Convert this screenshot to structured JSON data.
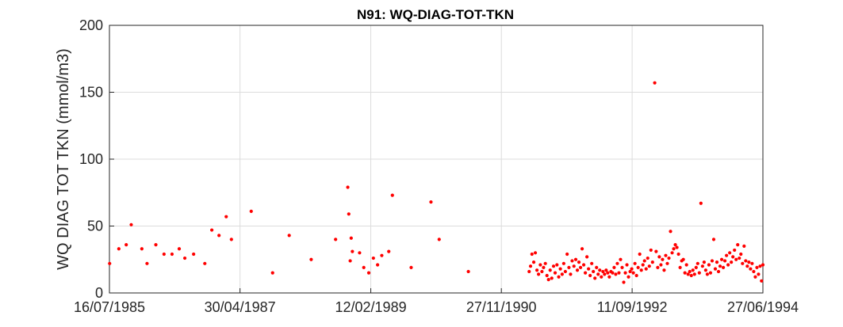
{
  "chart_data": {
    "type": "scatter",
    "title": "N91: WQ-DIAG-TOT-TKN",
    "xlabel": "",
    "ylabel": "WQ DIAG TOT TKN (mmol/m3)",
    "ylim": [
      0,
      200
    ],
    "yticks": [
      0,
      50,
      100,
      150,
      200
    ],
    "xlim": [
      "1985-07-16",
      "1994-06-27"
    ],
    "xticks": [
      "16/07/1985",
      "30/04/1987",
      "12/02/1989",
      "27/11/1990",
      "11/09/1992",
      "27/06/1994"
    ],
    "grid": true,
    "marker_color": "#ff0000",
    "series": [
      {
        "points": [
          [
            "1985-07-17",
            22
          ],
          [
            "1985-09-01",
            33
          ],
          [
            "1985-10-08",
            36
          ],
          [
            "1985-11-02",
            51
          ],
          [
            "1985-12-25",
            33
          ],
          [
            "1986-01-20",
            22
          ],
          [
            "1986-03-05",
            36
          ],
          [
            "1986-04-15",
            29
          ],
          [
            "1986-05-25",
            29
          ],
          [
            "1986-06-30",
            33
          ],
          [
            "1986-07-28",
            26
          ],
          [
            "1986-09-10",
            29
          ],
          [
            "1986-11-05",
            22
          ],
          [
            "1986-12-10",
            47
          ],
          [
            "1987-01-15",
            43
          ],
          [
            "1987-02-20",
            57
          ],
          [
            "1987-03-18",
            40
          ],
          [
            "1987-06-25",
            61
          ],
          [
            "1987-10-10",
            15
          ],
          [
            "1988-01-01",
            43
          ],
          [
            "1988-04-20",
            25
          ],
          [
            "1988-08-20",
            40
          ],
          [
            "1988-10-20",
            79
          ],
          [
            "1988-10-25",
            59
          ],
          [
            "1988-11-01",
            24
          ],
          [
            "1988-11-06",
            41
          ],
          [
            "1988-11-12",
            31
          ],
          [
            "1988-12-18",
            30
          ],
          [
            "1989-01-08",
            19
          ],
          [
            "1989-02-02",
            15
          ],
          [
            "1989-02-25",
            26
          ],
          [
            "1989-03-18",
            21
          ],
          [
            "1989-04-08",
            28
          ],
          [
            "1989-05-13",
            31
          ],
          [
            "1989-05-31",
            73
          ],
          [
            "1989-09-02",
            19
          ],
          [
            "1989-12-10",
            68
          ],
          [
            "1990-01-20",
            40
          ],
          [
            "1990-06-15",
            16
          ],
          [
            "1991-04-15",
            16
          ],
          [
            "1991-04-22",
            20
          ],
          [
            "1991-04-29",
            29
          ],
          [
            "1991-05-08",
            23
          ],
          [
            "1991-05-16",
            30
          ],
          [
            "1991-05-24",
            17
          ],
          [
            "1991-06-01",
            14
          ],
          [
            "1991-06-10",
            21
          ],
          [
            "1991-06-18",
            16
          ],
          [
            "1991-06-26",
            19
          ],
          [
            "1991-07-05",
            22
          ],
          [
            "1991-07-13",
            13
          ],
          [
            "1991-07-21",
            10
          ],
          [
            "1991-07-29",
            17
          ],
          [
            "1991-08-06",
            11
          ],
          [
            "1991-08-15",
            20
          ],
          [
            "1991-08-23",
            15
          ],
          [
            "1991-09-01",
            21
          ],
          [
            "1991-09-10",
            12
          ],
          [
            "1991-09-18",
            18
          ],
          [
            "1991-09-27",
            14
          ],
          [
            "1991-10-05",
            22
          ],
          [
            "1991-10-13",
            16
          ],
          [
            "1991-10-22",
            29
          ],
          [
            "1991-10-31",
            19
          ],
          [
            "1991-11-08",
            14
          ],
          [
            "1991-11-16",
            24
          ],
          [
            "1991-11-25",
            20
          ],
          [
            "1991-12-04",
            25
          ],
          [
            "1991-12-12",
            17
          ],
          [
            "1991-12-20",
            23
          ],
          [
            "1991-12-28",
            19
          ],
          [
            "1992-01-05",
            33
          ],
          [
            "1992-01-13",
            21
          ],
          [
            "1992-01-21",
            15
          ],
          [
            "1992-01-29",
            27
          ],
          [
            "1992-02-06",
            18
          ],
          [
            "1992-02-14",
            13
          ],
          [
            "1992-02-22",
            22
          ],
          [
            "1992-03-01",
            16
          ],
          [
            "1992-03-09",
            11
          ],
          [
            "1992-03-17",
            19
          ],
          [
            "1992-03-25",
            14
          ],
          [
            "1992-04-02",
            17
          ],
          [
            "1992-04-10",
            12
          ],
          [
            "1992-04-18",
            16
          ],
          [
            "1992-04-26",
            14
          ],
          [
            "1992-05-04",
            17
          ],
          [
            "1992-05-12",
            15
          ],
          [
            "1992-05-20",
            12
          ],
          [
            "1992-05-28",
            16
          ],
          [
            "1992-06-05",
            15
          ],
          [
            "1992-06-13",
            19
          ],
          [
            "1992-06-21",
            14
          ],
          [
            "1992-06-29",
            22
          ],
          [
            "1992-07-07",
            15
          ],
          [
            "1992-07-15",
            25
          ],
          [
            "1992-07-23",
            19
          ],
          [
            "1992-07-31",
            8
          ],
          [
            "1992-08-08",
            15
          ],
          [
            "1992-08-16",
            21
          ],
          [
            "1992-08-24",
            12
          ],
          [
            "1992-09-01",
            16
          ],
          [
            "1992-09-09",
            18
          ],
          [
            "1992-09-17",
            15
          ],
          [
            "1992-09-25",
            22
          ],
          [
            "1992-10-03",
            13
          ],
          [
            "1992-10-11",
            19
          ],
          [
            "1992-10-19",
            29
          ],
          [
            "1992-10-27",
            17
          ],
          [
            "1992-11-04",
            21
          ],
          [
            "1992-11-12",
            24
          ],
          [
            "1992-11-20",
            18
          ],
          [
            "1992-11-28",
            26
          ],
          [
            "1992-12-06",
            20
          ],
          [
            "1992-12-14",
            32
          ],
          [
            "1992-12-22",
            23
          ],
          [
            "1993-01-02",
            157
          ],
          [
            "1993-01-09",
            31
          ],
          [
            "1993-01-17",
            19
          ],
          [
            "1993-01-25",
            27
          ],
          [
            "1993-02-02",
            21
          ],
          [
            "1993-02-10",
            25
          ],
          [
            "1993-02-18",
            17
          ],
          [
            "1993-02-26",
            28
          ],
          [
            "1993-03-06",
            22
          ],
          [
            "1993-03-14",
            26
          ],
          [
            "1993-03-22",
            46
          ],
          [
            "1993-03-30",
            30
          ],
          [
            "1993-04-07",
            33
          ],
          [
            "1993-04-15",
            36
          ],
          [
            "1993-04-23",
            34
          ],
          [
            "1993-05-01",
            29
          ],
          [
            "1993-05-09",
            19
          ],
          [
            "1993-05-17",
            24
          ],
          [
            "1993-05-25",
            25
          ],
          [
            "1993-06-02",
            15
          ],
          [
            "1993-06-10",
            21
          ],
          [
            "1993-06-18",
            14
          ],
          [
            "1993-06-26",
            16
          ],
          [
            "1993-07-04",
            13
          ],
          [
            "1993-07-12",
            17
          ],
          [
            "1993-07-20",
            14
          ],
          [
            "1993-07-28",
            19
          ],
          [
            "1993-08-05",
            22
          ],
          [
            "1993-08-13",
            15
          ],
          [
            "1993-08-21",
            67
          ],
          [
            "1993-08-29",
            20
          ],
          [
            "1993-09-06",
            23
          ],
          [
            "1993-09-14",
            17
          ],
          [
            "1993-09-22",
            14
          ],
          [
            "1993-09-30",
            21
          ],
          [
            "1993-10-08",
            15
          ],
          [
            "1993-10-16",
            24
          ],
          [
            "1993-10-24",
            40
          ],
          [
            "1993-11-01",
            18
          ],
          [
            "1993-11-09",
            23
          ],
          [
            "1993-11-17",
            16
          ],
          [
            "1993-11-25",
            20
          ],
          [
            "1993-12-03",
            25
          ],
          [
            "1993-12-11",
            19
          ],
          [
            "1993-12-19",
            24
          ],
          [
            "1993-12-27",
            28
          ],
          [
            "1994-01-04",
            21
          ],
          [
            "1994-01-12",
            30
          ],
          [
            "1994-01-20",
            23
          ],
          [
            "1994-01-28",
            27
          ],
          [
            "1994-02-05",
            32
          ],
          [
            "1994-02-13",
            25
          ],
          [
            "1994-02-21",
            36
          ],
          [
            "1994-03-01",
            26
          ],
          [
            "1994-03-09",
            29
          ],
          [
            "1994-03-17",
            22
          ],
          [
            "1994-03-25",
            35
          ],
          [
            "1994-04-02",
            24
          ],
          [
            "1994-04-10",
            20
          ],
          [
            "1994-04-18",
            23
          ],
          [
            "1994-04-26",
            18
          ],
          [
            "1994-05-04",
            22
          ],
          [
            "1994-05-12",
            16
          ],
          [
            "1994-05-20",
            12
          ],
          [
            "1994-05-28",
            19
          ],
          [
            "1994-06-05",
            14
          ],
          [
            "1994-06-13",
            20
          ],
          [
            "1994-06-20",
            9
          ],
          [
            "1994-06-27",
            21
          ]
        ]
      }
    ]
  }
}
